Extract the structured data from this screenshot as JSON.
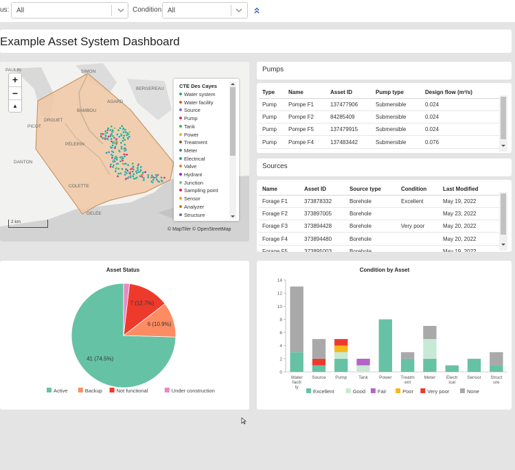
{
  "filters": {
    "status_label": "us:",
    "status_value": "All",
    "condition_label": "Condition:",
    "condition_value": "All"
  },
  "page_title": "Example Asset System Dashboard",
  "map": {
    "place_labels": [
      "PAULIN",
      "SIMON",
      "BERGEREAU",
      "AGARD",
      "BAMBOU",
      "DROUET",
      "PICOT",
      "PÉLERIN",
      "DANTON",
      "COLETTE",
      "GELÉE"
    ],
    "legend_title": "CTE Des Cayes",
    "legend_items": [
      {
        "label": "Water system",
        "color": "#2ca58d"
      },
      {
        "label": "Water facility",
        "color": "#e8561e"
      },
      {
        "label": "Source",
        "color": "#7b6fd0"
      },
      {
        "label": "Pump",
        "color": "#d6336c"
      },
      {
        "label": "Tank",
        "color": "#4caf50"
      },
      {
        "label": "Power",
        "color": "#f0b400"
      },
      {
        "label": "Treatment",
        "color": "#a0522d"
      },
      {
        "label": "Meter",
        "color": "#607d8b"
      },
      {
        "label": "Electrical",
        "color": "#1aa39a"
      },
      {
        "label": "Valve",
        "color": "#e67e22"
      },
      {
        "label": "Hydrant",
        "color": "#9c27b0"
      },
      {
        "label": "Junction",
        "color": "#8bc34a"
      },
      {
        "label": "Sampling point",
        "color": "#e91e63"
      },
      {
        "label": "Sensor",
        "color": "#ff9800"
      },
      {
        "label": "Analyzer",
        "color": "#c77d00"
      },
      {
        "label": "Structure",
        "color": "#5c6bc0"
      }
    ],
    "scale_label": "2 km",
    "attribution": "© MapTiler © OpenStreetMap",
    "zoom_in": "+",
    "zoom_out": "−",
    "north": "▲"
  },
  "pumps": {
    "title": "Pumps",
    "columns": [
      "Type",
      "Name",
      "Asset ID",
      "Pump type",
      "Design flow (m³/s)"
    ],
    "rows": [
      [
        "Pump",
        "Pompe F1",
        "137477906",
        "Submersible",
        "0.024"
      ],
      [
        "Pump",
        "Pompe F2",
        "84285409",
        "Submersible",
        "0.024"
      ],
      [
        "Pump",
        "Pompe F5",
        "137479915",
        "Submersible",
        "0.024"
      ],
      [
        "Pump",
        "Pompe F4",
        "137483442",
        "Submersible",
        "0.076"
      ]
    ]
  },
  "sources": {
    "title": "Sources",
    "columns": [
      "Name",
      "Asset ID",
      "Source type",
      "Condition",
      "Last Modified"
    ],
    "rows": [
      [
        "Forage F1",
        "373878332",
        "Borehole",
        "Excellent",
        "May 19, 2022"
      ],
      [
        "Forage F2",
        "373897005",
        "Borehole",
        "",
        "May 23, 2022"
      ],
      [
        "Forage F3",
        "373894428",
        "Borehole",
        "Very poor",
        "May 20, 2022"
      ],
      [
        "Forage F4",
        "373894480",
        "Borehole",
        "",
        "May 20, 2022"
      ],
      [
        "Forage F5",
        "373895003",
        "Borehole",
        "",
        "May 19, 2022"
      ]
    ]
  },
  "chart_data": [
    {
      "type": "pie",
      "title": "Asset Status",
      "slices": [
        {
          "name": "Active",
          "value": 41,
          "label": "41 (74.5%)",
          "color": "#66c2a5"
        },
        {
          "name": "Backup",
          "value": 6,
          "label": "6 (10.9%)",
          "color": "#fc8d62"
        },
        {
          "name": "Not functional",
          "value": 7,
          "label": "7 (12.7%)",
          "color": "#ee3a2c"
        },
        {
          "name": "Under construction",
          "value": 1,
          "label": "",
          "color": "#e78ac3"
        }
      ]
    },
    {
      "type": "bar",
      "stacked": true,
      "title": "Condition by Asset",
      "categories": [
        "Water facility",
        "Source",
        "Pump",
        "Tank",
        "Power",
        "Treatment",
        "Meter",
        "Electrical",
        "Sensor",
        "Structure"
      ],
      "category_labels": [
        "Water\nfacili\nty",
        "Source",
        "Pump",
        "Tank",
        "Power",
        "Treatm\nent",
        "Meter",
        "Electr\nical",
        "Sensor",
        "Struct\nure"
      ],
      "ylim": [
        0,
        14
      ],
      "yticks": [
        0,
        2,
        4,
        6,
        8,
        10,
        12,
        14
      ],
      "series": [
        {
          "name": "Excellent",
          "color": "#66c2a5",
          "values": [
            3,
            1,
            2,
            0,
            8,
            2,
            2,
            1,
            2,
            1
          ]
        },
        {
          "name": "Good",
          "color": "#c7e9d6",
          "values": [
            0,
            0,
            1,
            1,
            0,
            0,
            3,
            0,
            0,
            0
          ]
        },
        {
          "name": "Fair",
          "color": "#b464c8",
          "values": [
            0,
            0,
            0,
            1,
            0,
            0,
            0,
            0,
            0,
            0
          ]
        },
        {
          "name": "Poor",
          "color": "#f5b71a",
          "values": [
            0,
            0,
            1,
            0,
            0,
            0,
            0,
            0,
            0,
            0
          ]
        },
        {
          "name": "Very poor",
          "color": "#ee3a2c",
          "values": [
            0,
            1,
            1,
            0,
            0,
            0,
            0,
            0,
            0,
            0
          ]
        },
        {
          "name": "None",
          "color": "#a9a9a9",
          "values": [
            10,
            3,
            0,
            0,
            0,
            1,
            2,
            0,
            0,
            2
          ]
        }
      ]
    }
  ]
}
